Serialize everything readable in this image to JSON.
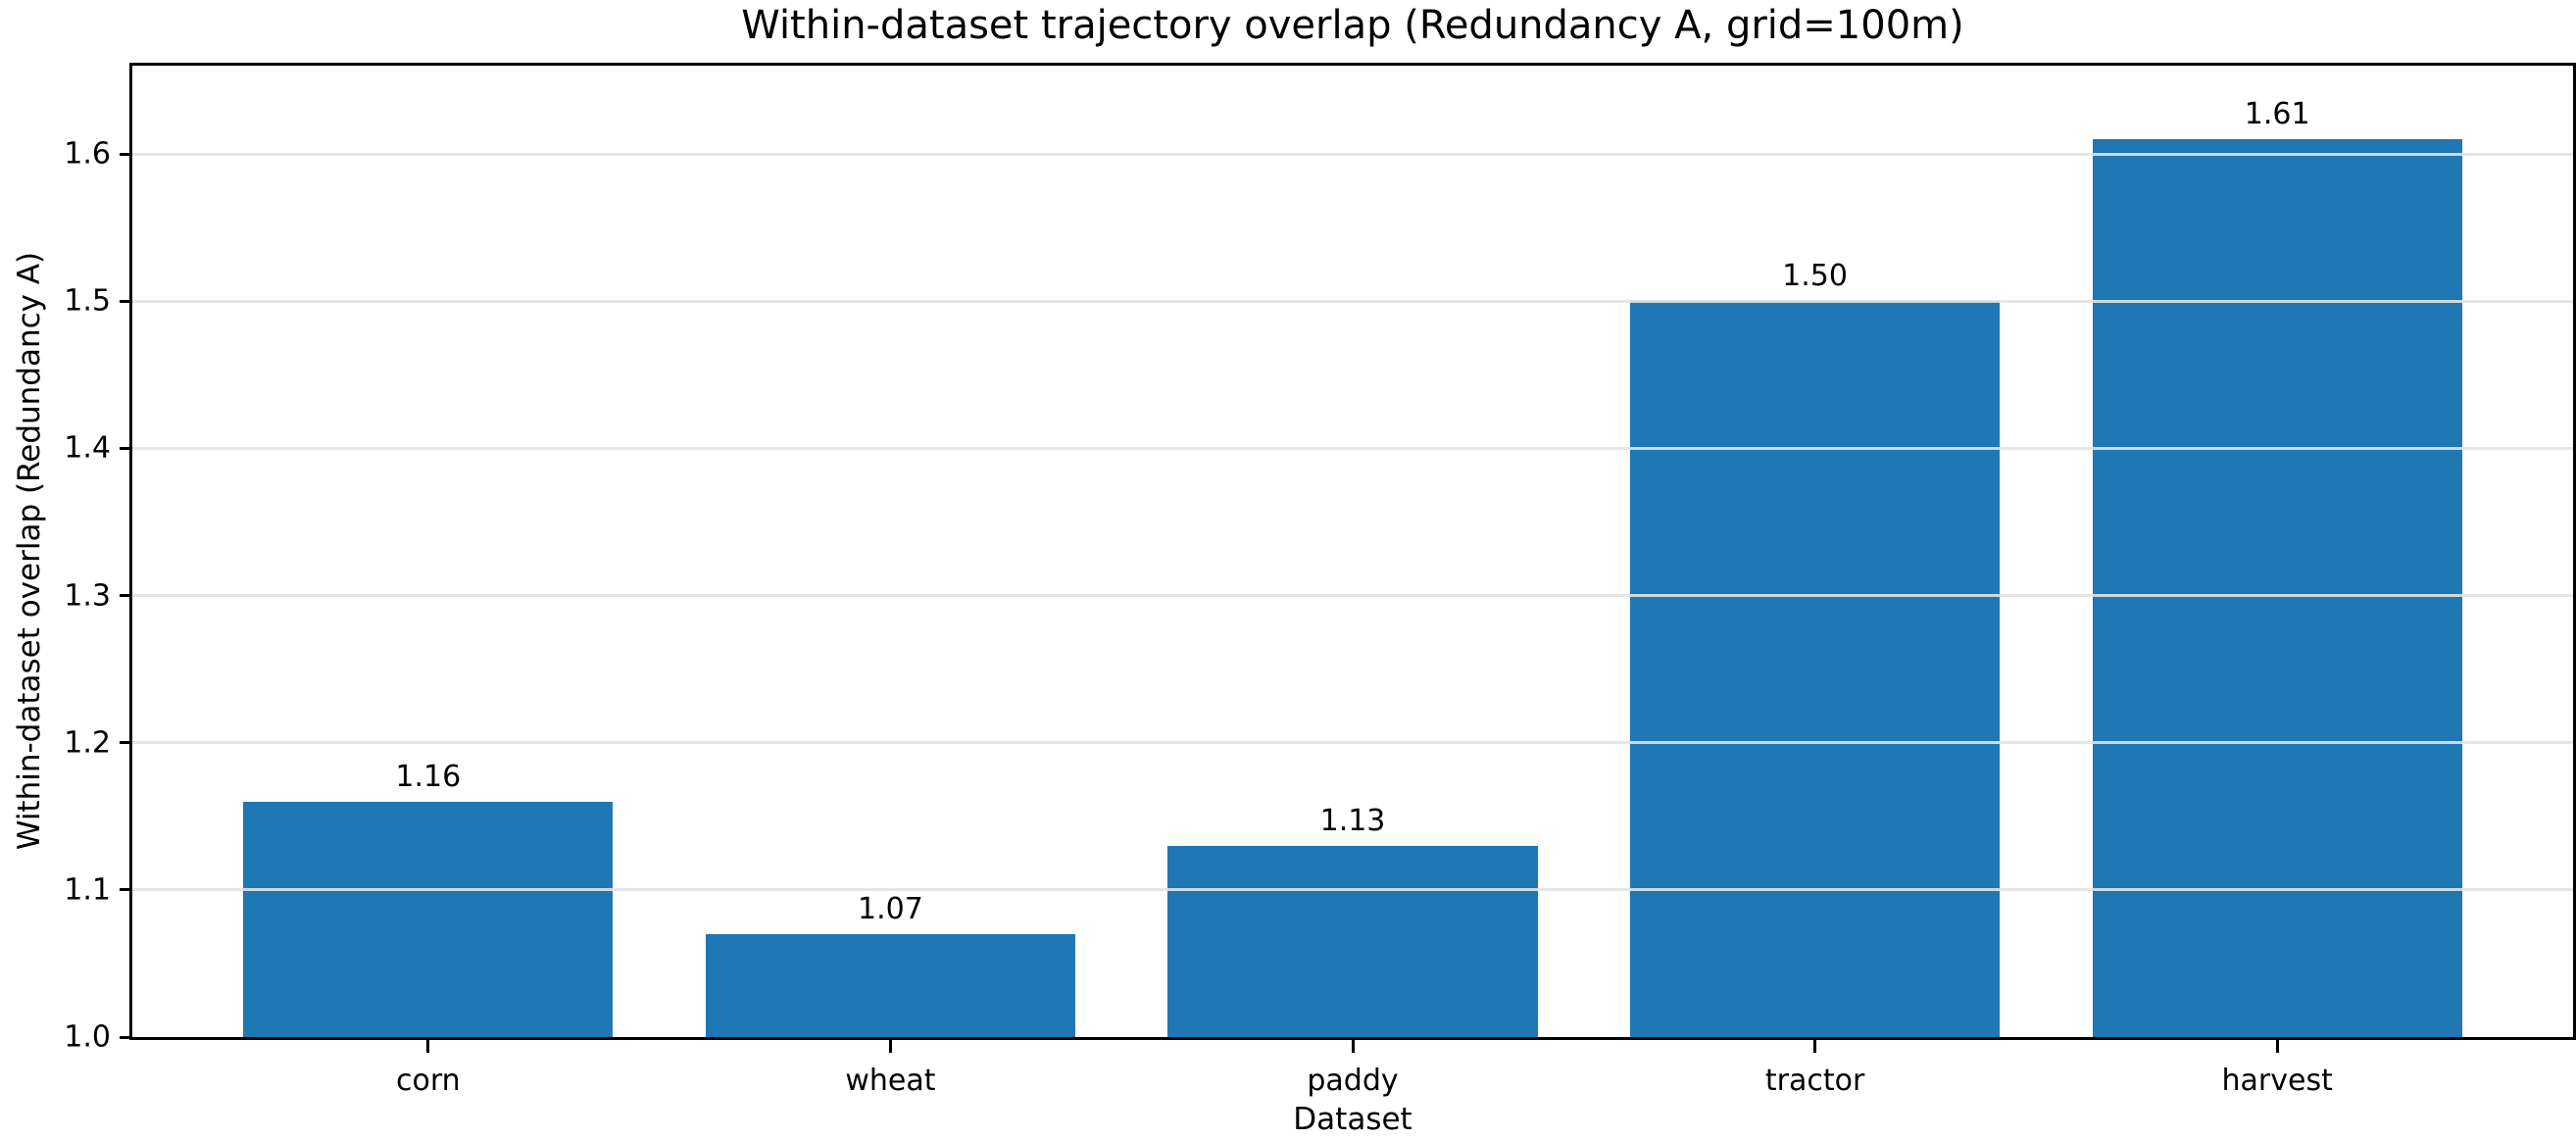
{
  "figure": {
    "title": "Within-dataset trajectory overlap (Redundancy A, grid=100m)"
  },
  "chart_data": {
    "type": "bar",
    "title": "Within-dataset trajectory overlap (Redundancy A, grid=100m)",
    "xlabel": "Dataset",
    "ylabel": "Within-dataset overlap (Redundancy A)",
    "categories": [
      "corn",
      "wheat",
      "paddy",
      "tractor",
      "harvest"
    ],
    "values": [
      1.16,
      1.07,
      1.13,
      1.5,
      1.61
    ],
    "bar_labels": [
      "1.16",
      "1.07",
      "1.13",
      "1.50",
      "1.61"
    ],
    "ylim": [
      1.0,
      1.66
    ],
    "yticks": [
      1.0,
      1.1,
      1.2,
      1.3,
      1.4,
      1.5,
      1.6
    ],
    "ytick_labels": [
      "1.0",
      "1.1",
      "1.2",
      "1.3",
      "1.4",
      "1.5",
      "1.6"
    ],
    "grid": "horizontal",
    "legend_position": "none",
    "bar_width_fraction": 0.8,
    "colors": {
      "bar": "#1f77b4",
      "gridline": "#e5e5e5",
      "spine": "#000000",
      "text": "#000000",
      "background": "#ffffff"
    }
  }
}
